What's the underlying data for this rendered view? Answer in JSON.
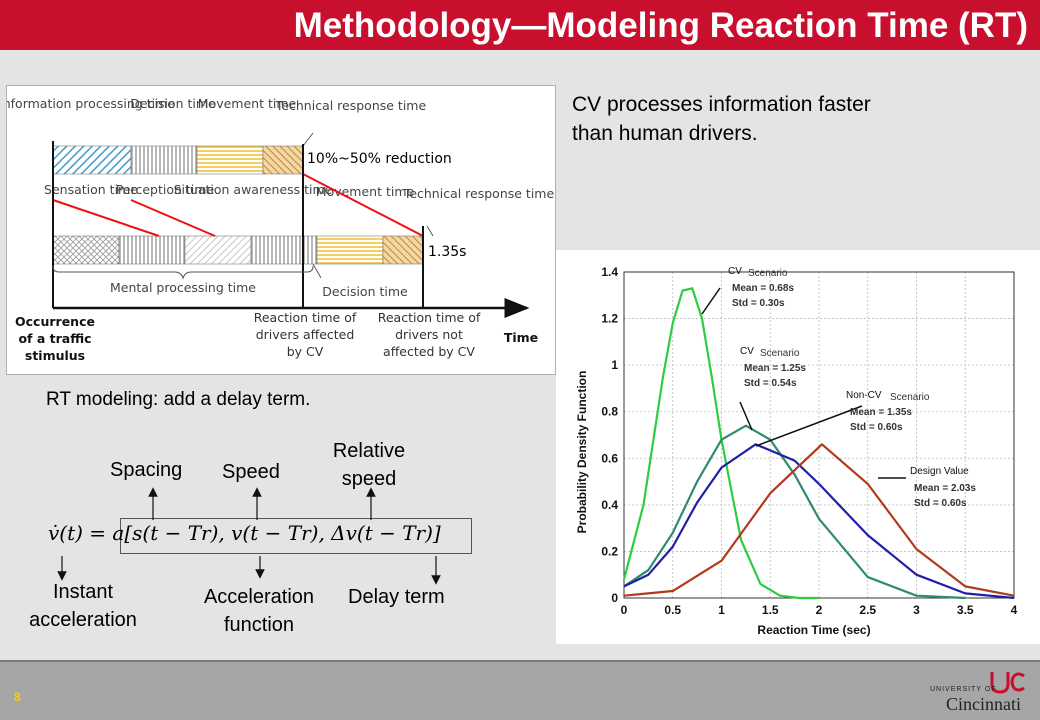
{
  "slide": {
    "title": "Methodology—Modeling Reaction Time (RT)",
    "page_number": "8",
    "cv_note": "CV processes information faster than human drivers.",
    "rt_model_note": "RT modeling: add a delay term."
  },
  "rt_diagram": {
    "top_phases": [
      "Information processing time",
      "Decision time",
      "Movement time",
      "Technical response time"
    ],
    "bottom_phases": [
      "Sensation time",
      "Perception time",
      "Situation awareness time",
      "Movement time",
      "Technical response time"
    ],
    "reduction_label": "10%~50% reduction",
    "rt_value_label": "1.35s",
    "mental_processing": "Mental processing time",
    "decision_time": "Decision time",
    "occurrence": "Occurrence of a traffic stimulus",
    "rt_affected": "Reaction time of drivers affected by CV",
    "rt_not_affected": "Reaction time of drivers not affected by CV",
    "time_axis": "Time"
  },
  "equation": {
    "labels": {
      "spacing": "Spacing",
      "speed": "Speed",
      "relative_speed": "Relative speed",
      "instant_acceleration": "Instant acceleration",
      "acceleration_function": "Acceleration function",
      "delay_term": "Delay term"
    },
    "formula": "v̇(t) = a[s(t − Tr), v(t − Tr), Δv(t − Tr)]"
  },
  "chart_data": {
    "type": "line",
    "xlabel": "Reaction Time (sec)",
    "ylabel": "Probability Density Function",
    "xlim": [
      0,
      4
    ],
    "ylim": [
      0,
      1.4
    ],
    "x_ticks": [
      "0",
      "0.5",
      "1",
      "1.5",
      "2",
      "2.5",
      "3",
      "3.5",
      "4"
    ],
    "y_ticks": [
      "0",
      "0.2",
      "0.4",
      "0.6",
      "0.8",
      "1",
      "1.2",
      "1.4"
    ],
    "grid": true,
    "series": [
      {
        "name": "CV",
        "mean": 0.68,
        "std": 0.3,
        "color": "#2ecc40",
        "x": [
          0,
          0.2,
          0.4,
          0.5,
          0.6,
          0.7,
          0.8,
          0.9,
          1.0,
          1.2,
          1.4,
          1.6,
          1.8,
          2.0
        ],
        "y": [
          0.08,
          0.4,
          0.95,
          1.18,
          1.32,
          1.33,
          1.2,
          0.95,
          0.68,
          0.25,
          0.06,
          0.01,
          0,
          0
        ]
      },
      {
        "name": "CV",
        "mean": 1.25,
        "std": 0.54,
        "color": "#2e8b6f",
        "x": [
          0,
          0.25,
          0.5,
          0.75,
          1.0,
          1.25,
          1.5,
          1.75,
          2.0,
          2.5,
          3.0,
          3.5
        ],
        "y": [
          0.05,
          0.12,
          0.28,
          0.5,
          0.68,
          0.74,
          0.68,
          0.53,
          0.34,
          0.09,
          0.01,
          0
        ]
      },
      {
        "name": "Non-CV",
        "mean": 1.35,
        "std": 0.6,
        "color": "#1f1fa8",
        "x": [
          0,
          0.25,
          0.5,
          0.75,
          1.0,
          1.35,
          1.75,
          2.0,
          2.5,
          3.0,
          3.5,
          4.0
        ],
        "y": [
          0.05,
          0.1,
          0.22,
          0.41,
          0.56,
          0.66,
          0.59,
          0.49,
          0.27,
          0.1,
          0.02,
          0
        ]
      },
      {
        "name": "Design Value",
        "mean": 2.03,
        "std": 0.6,
        "color": "#b03a1a",
        "x": [
          0,
          0.5,
          1.0,
          1.5,
          2.03,
          2.5,
          3.0,
          3.5,
          4.0
        ],
        "y": [
          0.01,
          0.03,
          0.16,
          0.45,
          0.66,
          0.49,
          0.21,
          0.05,
          0.01
        ]
      }
    ],
    "annotations": [
      {
        "tag": "CV",
        "scenario": "Scenario",
        "mean_text": "Mean = 0.68s",
        "std_text": "Std = 0.30s"
      },
      {
        "tag": "CV",
        "scenario": "Scenario",
        "mean_text": "Mean = 1.25s",
        "std_text": "Std = 0.54s"
      },
      {
        "tag": "Non-CV",
        "scenario": "Scenario",
        "mean_text": "Mean = 1.35s",
        "std_text": "Std = 0.60s"
      },
      {
        "tag": "Design Value",
        "scenario": "",
        "mean_text": "Mean = 2.03s",
        "std_text": "Std = 0.60s"
      }
    ]
  },
  "footer": {
    "university_small": "UNIVERSITY OF",
    "university_name": "Cincinnati",
    "logo_color": "#c8102e"
  }
}
